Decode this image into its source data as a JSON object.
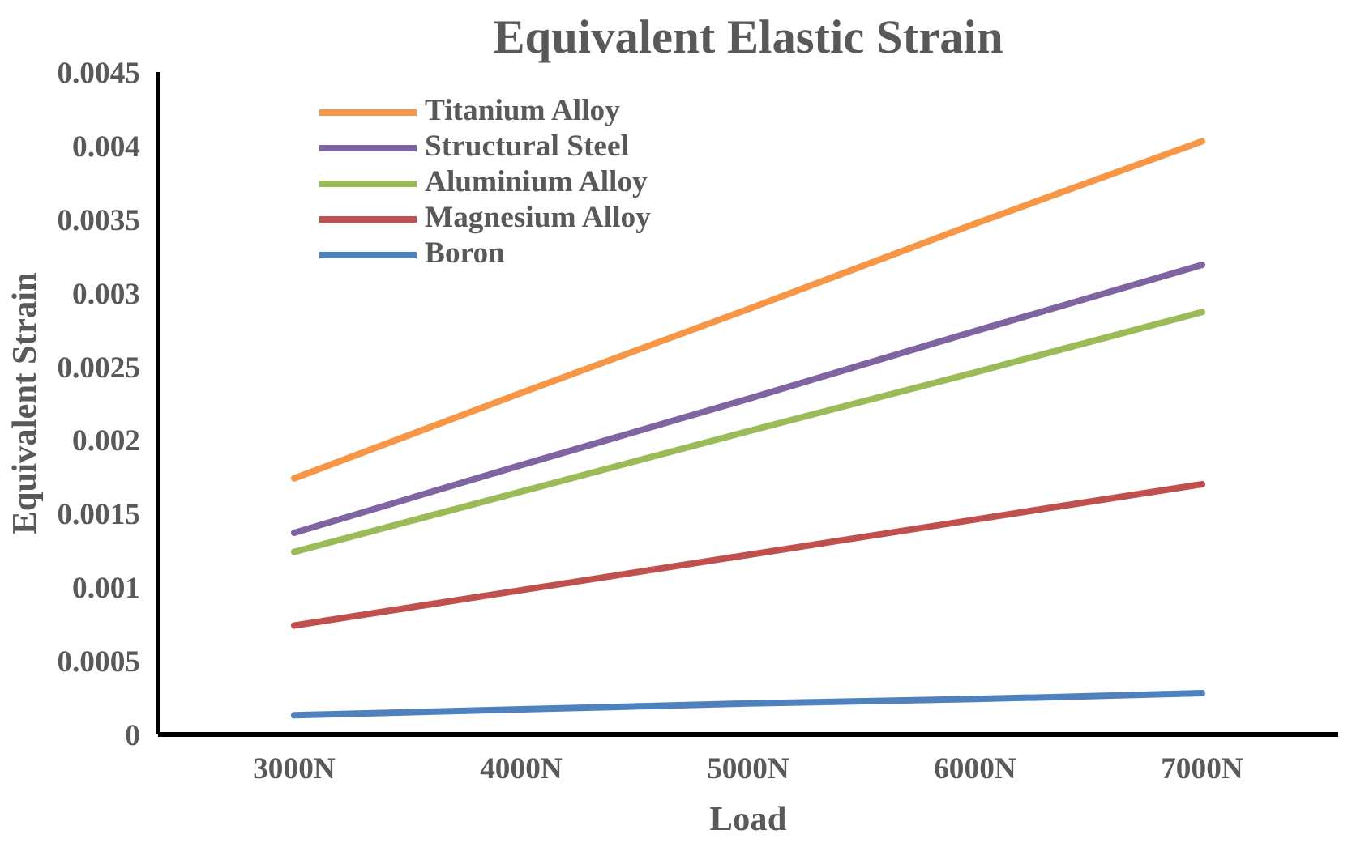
{
  "chart_data": {
    "type": "line",
    "title": "Equivalent Elastic Strain",
    "xlabel": "Load",
    "ylabel": "Equivalent Strain",
    "categories": [
      "3000N",
      "4000N",
      "5000N",
      "6000N",
      "7000N"
    ],
    "series": [
      {
        "name": "Titanium Alloy",
        "color": "#f79646",
        "values": [
          0.00174,
          0.00232,
          0.00289,
          0.00347,
          0.00403
        ]
      },
      {
        "name": "Structural Steel",
        "color": "#8064a2",
        "values": [
          0.00137,
          0.00183,
          0.00228,
          0.00274,
          0.00319
        ]
      },
      {
        "name": "Aluminium Alloy",
        "color": "#9bbb59",
        "values": [
          0.00124,
          0.00165,
          0.00206,
          0.00246,
          0.00287
        ]
      },
      {
        "name": "Magnesium Alloy",
        "color": "#c0504d",
        "values": [
          0.00074,
          0.00098,
          0.00122,
          0.00146,
          0.0017
        ]
      },
      {
        "name": "Boron",
        "color": "#4f81bd",
        "values": [
          0.00013,
          0.00017,
          0.00021,
          0.00024,
          0.00028
        ]
      }
    ],
    "ylim": [
      0,
      0.0045
    ],
    "yticks": [
      0,
      0.0005,
      0.001,
      0.0015,
      0.002,
      0.0025,
      0.003,
      0.0035,
      0.004,
      0.0045
    ],
    "grid": false,
    "legend": "top left",
    "marker": "none",
    "line_style": "solid"
  }
}
